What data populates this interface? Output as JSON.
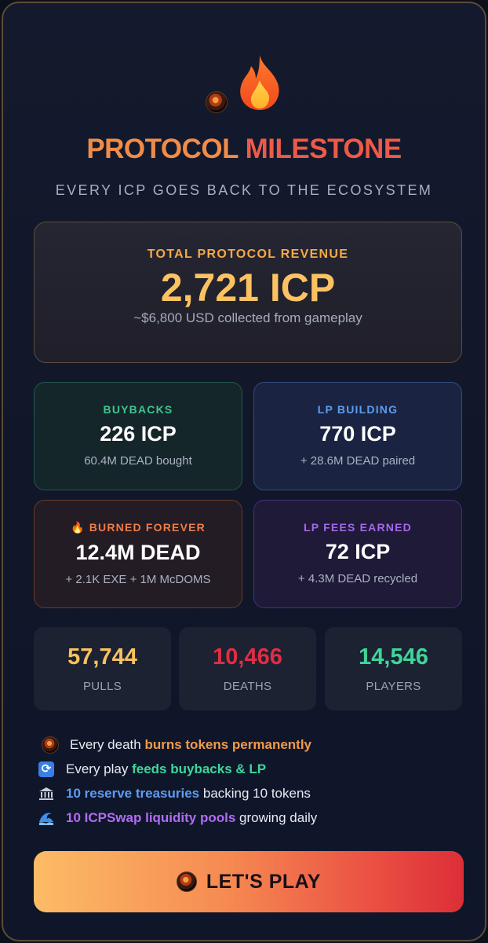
{
  "header": {
    "title_part1": "PROTOCOL",
    "title_part2": "MILESTONE",
    "subtitle": "EVERY ICP GOES BACK TO THE ECOSYSTEM",
    "icons": [
      "skull-logo-icon",
      "fire-icon"
    ]
  },
  "revenue": {
    "label": "TOTAL PROTOCOL REVENUE",
    "value": "2,721 ICP",
    "note": "~$6,800 USD collected from gameplay"
  },
  "cards": {
    "buybacks": {
      "label": "BUYBACKS",
      "value": "226 ICP",
      "note": "60.4M DEAD bought"
    },
    "lp_building": {
      "label": "LP BUILDING",
      "value": "770 ICP",
      "note": "+ 28.6M DEAD paired"
    },
    "burned": {
      "label": "🔥 BURNED FOREVER",
      "value": "12.4M DEAD",
      "note": "+ 2.1K EXE + 1M McDOMS"
    },
    "lp_fees": {
      "label": "LP FEES EARNED",
      "value": "72 ICP",
      "note": "+ 4.3M DEAD recycled"
    }
  },
  "stats": {
    "pulls": {
      "value": "57,744",
      "label": "PULLS"
    },
    "deaths": {
      "value": "10,466",
      "label": "DEATHS"
    },
    "players": {
      "value": "14,546",
      "label": "PLAYERS"
    }
  },
  "bullets": {
    "b1": {
      "pre": "Every death ",
      "hl": "burns tokens permanently",
      "post": ""
    },
    "b2": {
      "pre": "Every play ",
      "hl": "feeds buybacks & LP",
      "post": ""
    },
    "b3": {
      "pre": "",
      "hl": "10 reserve treasuries",
      "post": " backing 10 tokens"
    },
    "b4": {
      "pre": "",
      "hl": "10 ICPSwap liquidity pools",
      "post": " growing daily"
    }
  },
  "cta": {
    "label": "LET'S PLAY"
  },
  "colors": {
    "accent_orange": "#f08c48",
    "accent_gold": "#fcc262",
    "green": "#3ed69a",
    "blue": "#5e9cf0",
    "purple": "#b06cf2",
    "red": "#e02e44"
  }
}
